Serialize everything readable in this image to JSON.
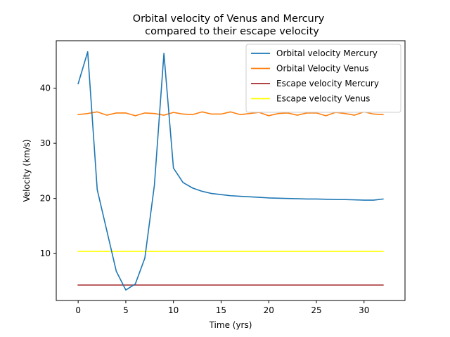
{
  "chart_data": {
    "type": "line",
    "title_line1": "Orbital velocity of Venus and Mercury",
    "title_line2": "compared to their escape velocity",
    "xlabel": "Time (yrs)",
    "ylabel": "Velocity (km/s)",
    "xlim": [
      -2.3,
      34.3
    ],
    "ylim": [
      1.5,
      48.6
    ],
    "xticks": [
      0,
      5,
      10,
      15,
      20,
      25,
      30
    ],
    "yticks": [
      10,
      20,
      30,
      40
    ],
    "grid": false,
    "legend_position": "top-right",
    "x": [
      0,
      1,
      2,
      3,
      4,
      5,
      6,
      7,
      8,
      9,
      10,
      11,
      12,
      13,
      14,
      15,
      16,
      17,
      18,
      19,
      20,
      21,
      22,
      23,
      24,
      25,
      26,
      27,
      28,
      29,
      30,
      31,
      32
    ],
    "series": [
      {
        "name": "Orbital velocity Mercury",
        "color": "#1f77b4",
        "values": [
          40.8,
          46.6,
          21.6,
          14.2,
          6.8,
          3.4,
          4.5,
          9.2,
          22.4,
          46.3,
          25.5,
          22.9,
          21.9,
          21.3,
          20.9,
          20.7,
          20.5,
          20.4,
          20.3,
          20.2,
          20.1,
          20.05,
          20.0,
          19.95,
          19.9,
          19.9,
          19.85,
          19.8,
          19.8,
          19.75,
          19.7,
          19.7,
          19.9
        ]
      },
      {
        "name": "Orbital Velocity Venus",
        "color": "#ff7f0e",
        "values": [
          35.2,
          35.4,
          35.7,
          35.1,
          35.5,
          35.5,
          35.0,
          35.5,
          35.4,
          35.1,
          35.6,
          35.3,
          35.2,
          35.7,
          35.3,
          35.3,
          35.7,
          35.2,
          35.4,
          35.6,
          35.0,
          35.4,
          35.5,
          35.1,
          35.5,
          35.5,
          35.0,
          35.6,
          35.4,
          35.1,
          35.7,
          35.3,
          35.2
        ]
      },
      {
        "name": "Escape velocity Mercury",
        "color": "#a52a2a",
        "values": [
          4.3,
          4.3,
          4.3,
          4.3,
          4.3,
          4.3,
          4.3,
          4.3,
          4.3,
          4.3,
          4.3,
          4.3,
          4.3,
          4.3,
          4.3,
          4.3,
          4.3,
          4.3,
          4.3,
          4.3,
          4.3,
          4.3,
          4.3,
          4.3,
          4.3,
          4.3,
          4.3,
          4.3,
          4.3,
          4.3,
          4.3,
          4.3,
          4.3
        ]
      },
      {
        "name": "Escape velocity Venus",
        "color": "#ffff00",
        "values": [
          10.4,
          10.4,
          10.4,
          10.4,
          10.4,
          10.4,
          10.4,
          10.4,
          10.4,
          10.4,
          10.4,
          10.4,
          10.4,
          10.4,
          10.4,
          10.4,
          10.4,
          10.4,
          10.4,
          10.4,
          10.4,
          10.4,
          10.4,
          10.4,
          10.4,
          10.4,
          10.4,
          10.4,
          10.4,
          10.4,
          10.4,
          10.4,
          10.4
        ]
      }
    ]
  }
}
